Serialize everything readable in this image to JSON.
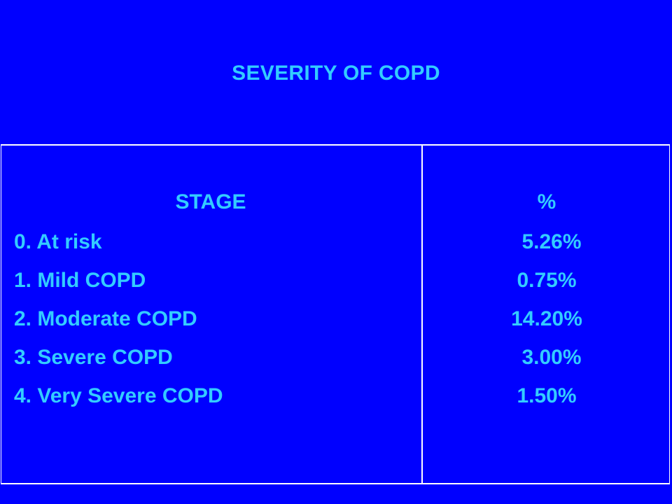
{
  "slide": {
    "title": "SEVERITY OF COPD"
  },
  "table": {
    "headers": {
      "stage": "STAGE",
      "percent": "%"
    },
    "rows": [
      {
        "stage": "0. At risk",
        "percent": "5.26%"
      },
      {
        "stage": "1. Mild COPD",
        "percent": "0.75%"
      },
      {
        "stage": "2. Moderate COPD",
        "percent": "14.20%"
      },
      {
        "stage": "3. Severe COPD",
        "percent": "3.00%"
      },
      {
        "stage": "4. Very Severe COPD",
        "percent": "1.50%"
      }
    ]
  },
  "colors": {
    "background": "#0000ff",
    "text": "#33ccff",
    "rule": "#ffffff"
  }
}
